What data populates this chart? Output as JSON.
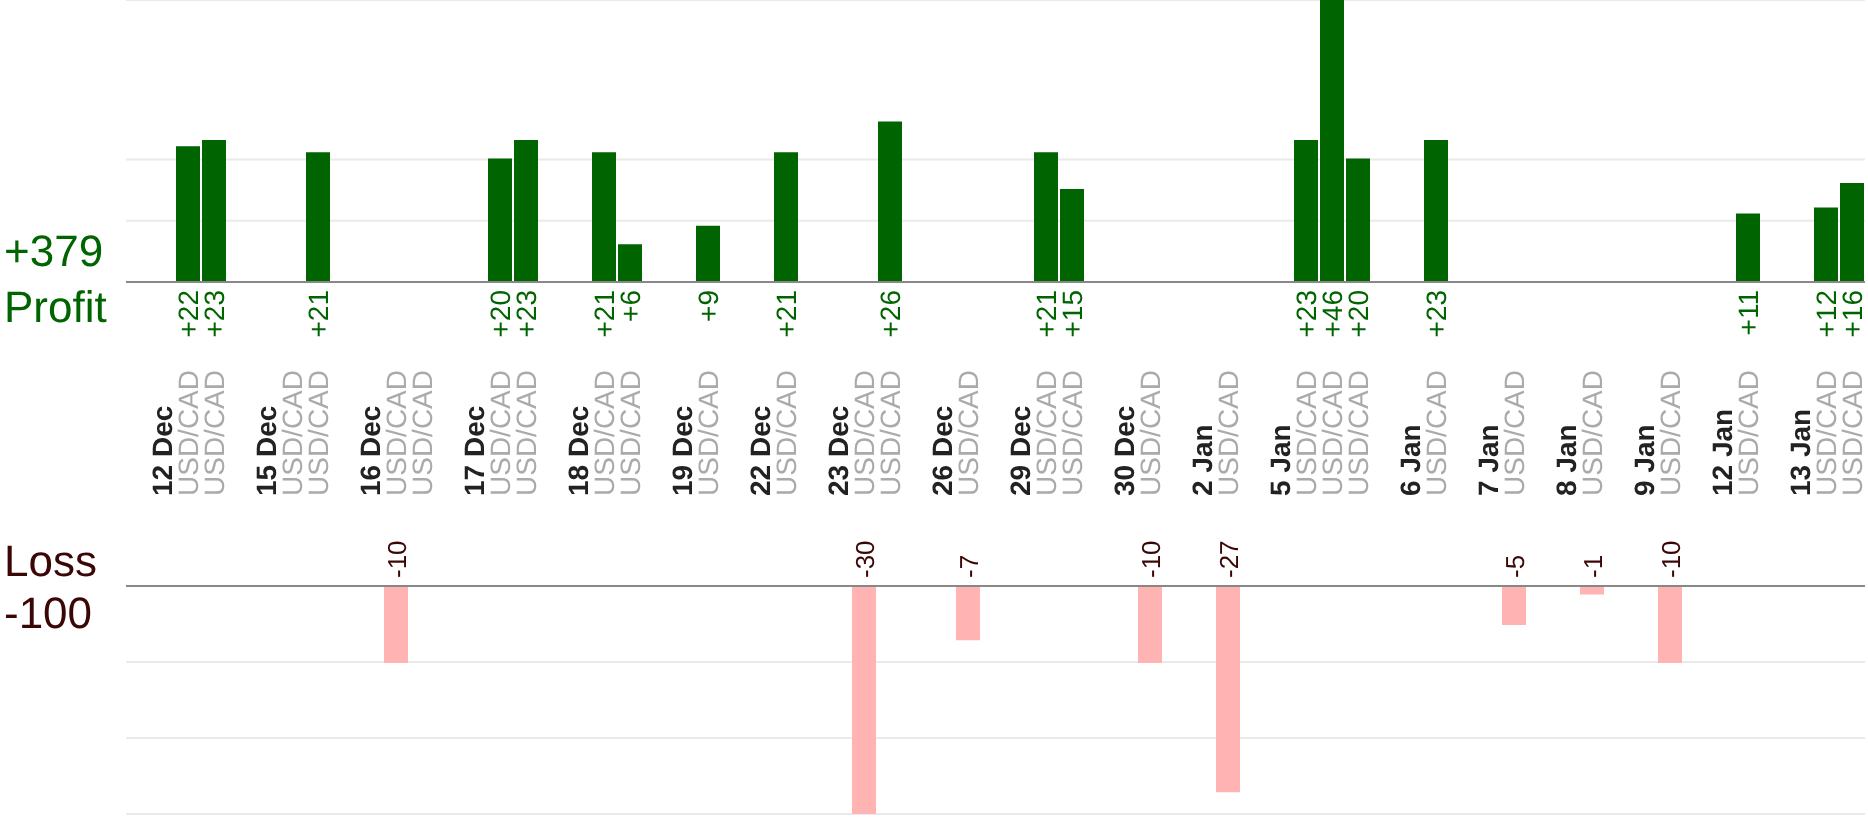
{
  "chart_data": [
    {
      "type": "bar",
      "annotations": [
        "+379",
        "Profit"
      ],
      "categories": [
        "12 Dec",
        "USD/CAD",
        "USD/CAD",
        null,
        "15 Dec",
        "USD/CAD",
        "USD/CAD",
        null,
        "16 Dec",
        "USD/CAD",
        "USD/CAD",
        null,
        "17 Dec",
        "USD/CAD",
        "USD/CAD",
        null,
        "18 Dec",
        "USD/CAD",
        "USD/CAD",
        null,
        "19 Dec",
        "USD/CAD",
        null,
        "22 Dec",
        "USD/CAD",
        null,
        "23 Dec",
        "USD/CAD",
        "USD/CAD",
        null,
        "26 Dec",
        "USD/CAD",
        null,
        "29 Dec",
        "USD/CAD",
        "USD/CAD",
        null,
        "30 Dec",
        "USD/CAD",
        null,
        "2 Jan",
        "USD/CAD",
        null,
        "5 Jan",
        "USD/CAD",
        "USD/CAD",
        "USD/CAD",
        null,
        "6 Jan",
        "USD/CAD",
        null,
        "7 Jan",
        "USD/CAD",
        null,
        "8 Jan",
        "USD/CAD",
        null,
        "9 Jan",
        "USD/CAD",
        null,
        "12 Jan",
        "USD/CAD",
        null,
        "13 Jan",
        "USD/CAD",
        "USD/CAD"
      ],
      "values": [
        null,
        22,
        23,
        null,
        null,
        null,
        21,
        null,
        null,
        null,
        null,
        null,
        null,
        20,
        23,
        null,
        null,
        21,
        6,
        null,
        null,
        9,
        null,
        null,
        21,
        null,
        null,
        null,
        26,
        null,
        null,
        null,
        null,
        null,
        21,
        15,
        null,
        null,
        null,
        null,
        null,
        null,
        null,
        null,
        23,
        46,
        20,
        null,
        null,
        23,
        null,
        null,
        null,
        null,
        null,
        null,
        null,
        null,
        null,
        null,
        null,
        11,
        null,
        null,
        12,
        16
      ],
      "value_labels": [
        null,
        "+22",
        "+23",
        null,
        null,
        null,
        "+21",
        null,
        null,
        null,
        null,
        null,
        null,
        "+20",
        "+23",
        null,
        null,
        "+21",
        "+6",
        null,
        null,
        "+9",
        null,
        null,
        "+21",
        null,
        null,
        null,
        "+26",
        null,
        null,
        null,
        null,
        null,
        "+21",
        "+15",
        null,
        null,
        null,
        null,
        null,
        null,
        null,
        null,
        "+23",
        "+46",
        "+20",
        null,
        null,
        "+23",
        null,
        null,
        null,
        null,
        null,
        null,
        null,
        null,
        null,
        null,
        null,
        "+11",
        null,
        null,
        "+12",
        "+16"
      ],
      "color": "#006400",
      "ylim": [
        0,
        46
      ],
      "yticks": [
        {
          "value": 10,
          "label": null
        },
        {
          "value": 20,
          "label": null
        }
      ],
      "grid": "y",
      "tick_labels": "x"
    },
    {
      "type": "bar",
      "annotations": [
        "Loss",
        "-100"
      ],
      "categories": [
        null,
        null,
        null,
        null,
        null,
        null,
        null,
        null,
        null,
        null,
        null,
        null,
        null,
        null,
        null,
        null,
        null,
        null,
        null,
        null,
        null,
        null,
        null,
        null,
        null,
        null,
        null,
        null,
        null,
        null,
        null,
        null,
        null,
        null,
        null,
        null,
        null,
        null,
        null,
        null,
        null,
        null,
        null,
        null,
        null,
        null,
        null,
        null,
        null,
        null,
        null,
        null,
        null,
        null,
        null,
        null,
        null,
        null,
        null,
        null,
        null,
        null,
        null,
        null,
        null,
        null
      ],
      "values": [
        null,
        null,
        null,
        null,
        null,
        null,
        null,
        null,
        null,
        -10,
        null,
        null,
        null,
        null,
        null,
        null,
        null,
        null,
        null,
        null,
        null,
        null,
        null,
        null,
        null,
        null,
        null,
        -30,
        null,
        null,
        null,
        -7,
        null,
        null,
        null,
        null,
        null,
        null,
        -10,
        null,
        null,
        -27,
        null,
        null,
        null,
        null,
        null,
        null,
        null,
        null,
        null,
        null,
        -5,
        null,
        null,
        -1,
        null,
        null,
        -10,
        null,
        null,
        null,
        null,
        null,
        null,
        null
      ],
      "data_labels": true,
      "color": "#ffb3b3",
      "ylim": [
        -30,
        0
      ],
      "yticks": [
        {
          "value": -10,
          "label": null
        },
        {
          "value": -20,
          "label": null
        }
      ],
      "grid": "y",
      "tick_labels": false
    }
  ]
}
